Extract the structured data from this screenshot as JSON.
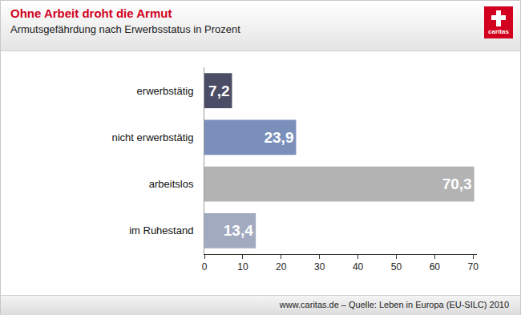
{
  "chart_data": {
    "type": "bar",
    "orientation": "horizontal",
    "title": "Ohne Arbeit droht die Armut",
    "subtitle": "Armutsgefährdung nach Erwerbsstatus in Prozent",
    "source": "www.caritas.de – Quelle: Leben in Europa (EU-SILC) 2010",
    "logo": "caritas",
    "categories": [
      "erwerbstätig",
      "nicht erwerbstätig",
      "arbeitslos",
      "im Ruhestand"
    ],
    "values": [
      7.2,
      23.9,
      70.3,
      13.4
    ],
    "value_labels": [
      "7,2",
      "23,9",
      "70,3",
      "13,4"
    ],
    "colors": [
      "#4b4c66",
      "#7b8fbb",
      "#b3b3b3",
      "#a2aac0"
    ],
    "xlim": [
      0,
      71
    ],
    "xticks": [
      0,
      10,
      20,
      30,
      40,
      50,
      60,
      70
    ],
    "grid": false,
    "data_labels": true
  }
}
